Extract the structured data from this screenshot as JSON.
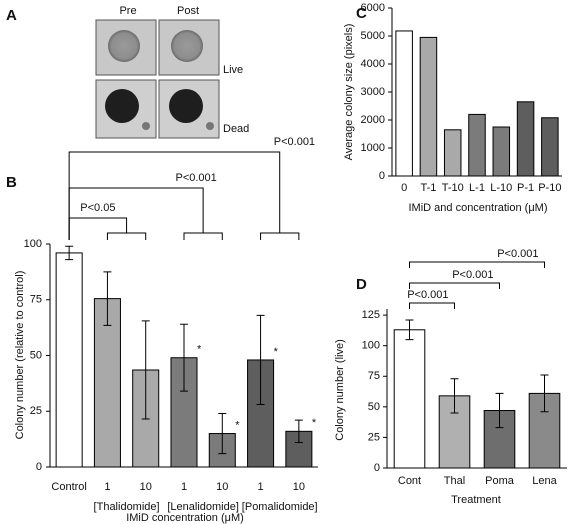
{
  "panel_a": {
    "label": "A",
    "columns": [
      "Pre",
      "Post"
    ],
    "rows": [
      "Live",
      "Dead"
    ]
  },
  "chart_data": [
    {
      "type": "bar",
      "panel_label": "B",
      "y_label": "Colony number (relative to control)",
      "x_label": "IMiD concentration (μM)",
      "categories": [
        "Control",
        "1",
        "10",
        "1",
        "10",
        "1",
        "10"
      ],
      "groups": [
        "[Thalidomide]",
        "[Lenalidomide]",
        "[Pomalidomide]"
      ],
      "values": [
        96,
        75.5,
        43.5,
        49,
        15,
        48,
        16
      ],
      "errors": [
        3,
        12,
        22,
        15,
        9,
        20,
        5
      ],
      "markers": [
        null,
        null,
        null,
        "*",
        "*",
        "*",
        "*"
      ],
      "colors": [
        "#ffffff",
        "#a9a9a9",
        "#a9a9a9",
        "#7b7b7b",
        "#7b7b7b",
        "#5e5e5e",
        "#5e5e5e"
      ],
      "ylim": [
        0,
        100
      ],
      "yticks": [
        0,
        25,
        50,
        75,
        100
      ],
      "annotations": [
        "P<0.05",
        "P<0.001",
        "P<0.001"
      ]
    },
    {
      "type": "bar",
      "panel_label": "C",
      "y_label": "Average colony size (pixels)",
      "x_label": "IMiD and concentration (μM)",
      "categories": [
        "0",
        "T-1",
        "T-10",
        "L-1",
        "L-10",
        "P-1",
        "P-10"
      ],
      "values": [
        5180,
        4950,
        1650,
        2200,
        1750,
        2650,
        2080
      ],
      "colors": [
        "#ffffff",
        "#a9a9a9",
        "#a9a9a9",
        "#7b7b7b",
        "#7b7b7b",
        "#5e5e5e",
        "#5e5e5e"
      ],
      "ylim": [
        0,
        6000
      ],
      "yticks": [
        0,
        1000,
        2000,
        3000,
        4000,
        5000,
        6000
      ]
    },
    {
      "type": "bar",
      "panel_label": "D",
      "y_label": "Colony number (live)",
      "x_label": "Treatment",
      "categories": [
        "Cont",
        "Thal",
        "Poma",
        "Lena"
      ],
      "values": [
        113,
        59,
        47,
        61
      ],
      "errors": [
        8,
        14,
        14,
        15
      ],
      "colors": [
        "#ffffff",
        "#b0b0b0",
        "#6e6e6e",
        "#8a8a8a"
      ],
      "ylim": [
        0,
        130
      ],
      "yticks": [
        0,
        25,
        50,
        75,
        100,
        125
      ],
      "annotations": [
        "P<0.001",
        "P<0.001",
        "P<0.001"
      ]
    }
  ]
}
